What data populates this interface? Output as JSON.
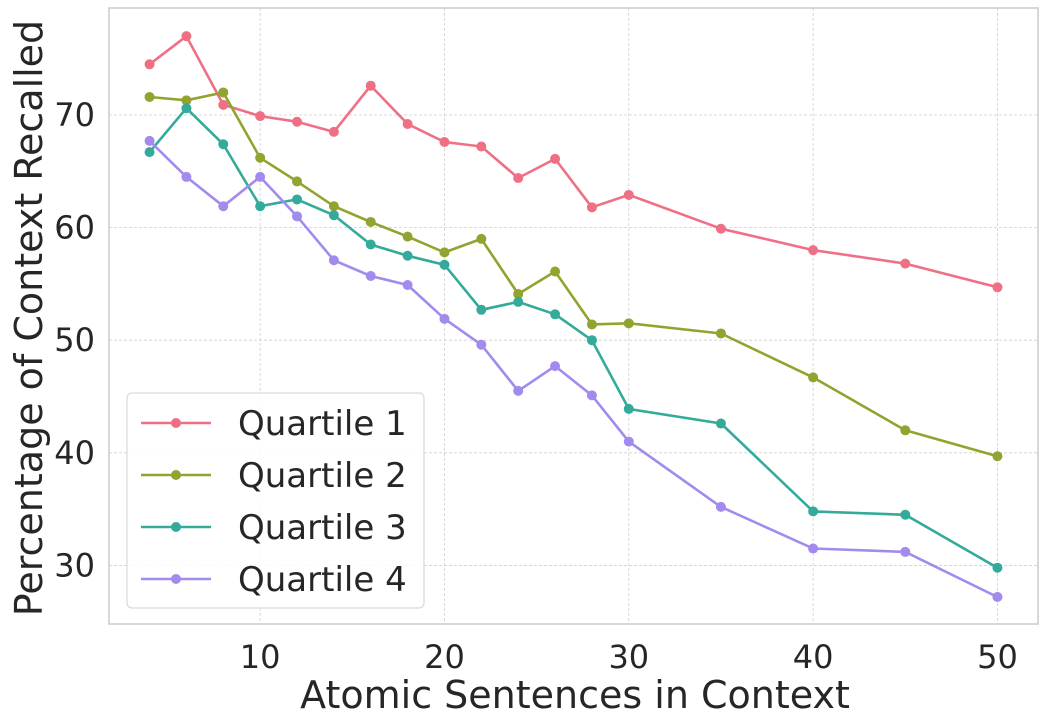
{
  "chart_data": {
    "type": "line",
    "xlabel": "Atomic Sentences in Context",
    "ylabel": "Percentage of Context Recalled",
    "xlim": [
      1.8,
      52.2
    ],
    "ylim": [
      24.8,
      79.5
    ],
    "xticks": [
      10,
      20,
      30,
      40,
      50
    ],
    "yticks": [
      30,
      40,
      50,
      60,
      70
    ],
    "grid": true,
    "legend_position": "lower-left",
    "x": [
      4,
      6,
      8,
      10,
      12,
      14,
      16,
      18,
      20,
      22,
      24,
      26,
      28,
      30,
      35,
      40,
      45,
      50
    ],
    "series": [
      {
        "name": "Quartile 1",
        "color": "#ef6f85",
        "values": [
          74.5,
          77.0,
          70.9,
          69.9,
          69.4,
          68.5,
          72.6,
          69.2,
          67.6,
          67.2,
          64.4,
          66.1,
          61.8,
          62.9,
          59.9,
          58.0,
          56.8,
          54.7
        ]
      },
      {
        "name": "Quartile 2",
        "color": "#93a32f",
        "values": [
          71.6,
          71.3,
          72.0,
          66.2,
          64.1,
          61.9,
          60.5,
          59.2,
          57.8,
          59.0,
          54.1,
          56.1,
          51.4,
          51.5,
          50.6,
          46.7,
          42.0,
          39.7
        ]
      },
      {
        "name": "Quartile 3",
        "color": "#34ab9a",
        "values": [
          66.7,
          70.6,
          67.4,
          61.9,
          62.5,
          61.1,
          58.5,
          57.5,
          56.7,
          52.7,
          53.4,
          52.3,
          50.0,
          43.9,
          42.6,
          34.8,
          34.5,
          29.8
        ]
      },
      {
        "name": "Quartile 4",
        "color": "#a28bed",
        "values": [
          67.7,
          64.5,
          61.9,
          64.5,
          61.0,
          57.1,
          55.7,
          54.9,
          51.9,
          49.6,
          45.5,
          47.7,
          45.1,
          41.0,
          35.2,
          31.5,
          31.2,
          27.2
        ]
      }
    ]
  }
}
